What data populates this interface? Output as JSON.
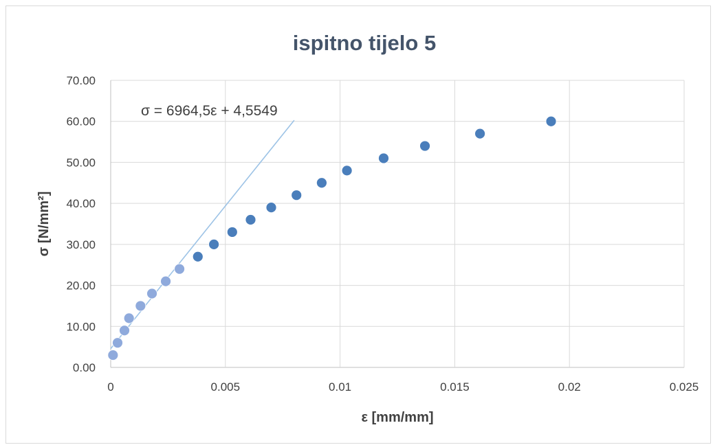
{
  "chart_data": {
    "type": "scatter",
    "title": "ispitno tijelo 5",
    "xlabel": "ε [mm/mm]",
    "ylabel": "σ [N/mm²]",
    "xlim": [
      0,
      0.025
    ],
    "ylim": [
      0,
      70
    ],
    "x_ticks": [
      "0",
      "0.005",
      "0.01",
      "0.015",
      "0.02",
      "0.025"
    ],
    "y_ticks": [
      "0.00",
      "10.00",
      "20.00",
      "30.00",
      "40.00",
      "50.00",
      "60.00",
      "70.00"
    ],
    "grid": true,
    "series": [
      {
        "role": "linear-region",
        "color": "#8faadc",
        "x": [
          0.0001,
          0.0003,
          0.0006,
          0.0008,
          0.0013,
          0.0018,
          0.0024,
          0.003
        ],
        "y": [
          3,
          6,
          9,
          12,
          15,
          18,
          21,
          24
        ]
      },
      {
        "role": "remaining",
        "color": "#4a7ebb",
        "x": [
          0.0038,
          0.0045,
          0.0053,
          0.0061,
          0.007,
          0.0081,
          0.0092,
          0.0103,
          0.0119,
          0.0137,
          0.0161,
          0.0192
        ],
        "y": [
          27,
          30,
          33,
          36,
          39,
          42,
          45,
          48,
          51,
          54,
          57,
          60
        ]
      }
    ],
    "trendline": {
      "type": "linear",
      "slope": 6964.5,
      "intercept": 4.5549,
      "x_range": [
        0,
        0.008
      ],
      "color": "#9dc3e6",
      "equation": "σ = 6964,5ε + 4,5549"
    }
  }
}
